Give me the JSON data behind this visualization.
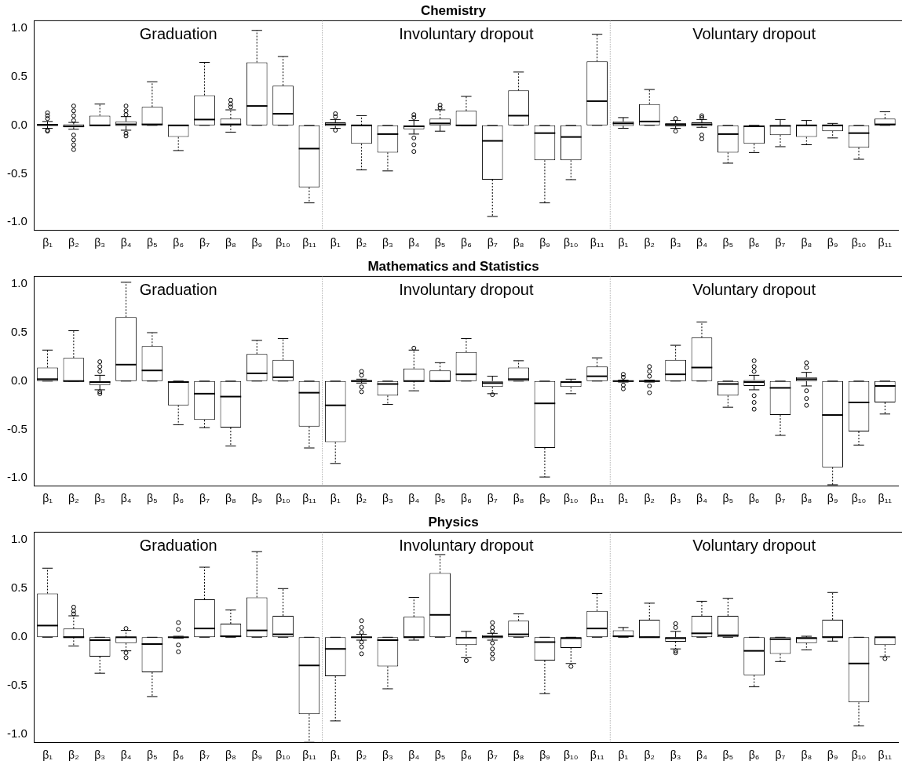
{
  "chart_data": [
    {
      "type": "box",
      "title": "Chemistry",
      "categories": [
        "β₁",
        "β₂",
        "β₃",
        "β₄",
        "β₅",
        "β₆",
        "β₇",
        "β₈",
        "β₉",
        "β₁₀",
        "β₁₁",
        "β₁",
        "β₂",
        "β₃",
        "β₄",
        "β₅",
        "β₆",
        "β₇",
        "β₈",
        "β₉",
        "β₁₀",
        "β₁₁",
        "β₁",
        "β₂",
        "β₃",
        "β₄",
        "β₅",
        "β₆",
        "β₇",
        "β₈",
        "β₉",
        "β₁₀",
        "β₁₁"
      ],
      "ylim": [
        -1.08,
        1.08
      ],
      "yticks": [
        {
          "value": -1,
          "label": "-1.0"
        },
        {
          "value": -0.5,
          "label": "-0.5"
        },
        {
          "value": 0,
          "label": "0.0"
        },
        {
          "value": 0.5,
          "label": "0.5"
        },
        {
          "value": 1,
          "label": "1.0"
        }
      ],
      "annotations": [
        "Graduation",
        "Involuntary dropout",
        "Voluntary dropout"
      ],
      "boxes": [
        {
          "low": -0.03,
          "q1": -0.005,
          "median": 0.005,
          "q3": 0.015,
          "high": 0.04,
          "outliers": [
            0.13,
            0.1,
            0.07,
            -0.05,
            -0.06
          ]
        },
        {
          "low": -0.04,
          "q1": -0.02,
          "median": -0.01,
          "q3": 0.01,
          "high": 0.03,
          "outliers": [
            0.2,
            0.15,
            0.1,
            0.05,
            -0.1,
            -0.15,
            -0.2,
            -0.25
          ]
        },
        {
          "low": 0,
          "q1": 0,
          "median": 0,
          "q3": 0.1,
          "high": 0.22
        },
        {
          "low": -0.05,
          "q1": -0.005,
          "median": 0.01,
          "q3": 0.04,
          "high": 0.09,
          "outliers": [
            0.2,
            0.15,
            0.11,
            -0.08,
            -0.11
          ]
        },
        {
          "low": 0,
          "q1": 0,
          "median": 0.01,
          "q3": 0.19,
          "high": 0.45
        },
        {
          "low": -0.26,
          "q1": -0.12,
          "median": 0,
          "q3": 0,
          "high": 0
        },
        {
          "low": 0,
          "q1": 0,
          "median": 0.06,
          "q3": 0.31,
          "high": 0.65
        },
        {
          "low": -0.07,
          "q1": 0,
          "median": 0.01,
          "q3": 0.07,
          "high": 0.16,
          "outliers": [
            0.26,
            0.22,
            0.19
          ]
        },
        {
          "low": 0,
          "q1": 0,
          "median": 0.2,
          "q3": 0.65,
          "high": 0.98
        },
        {
          "low": 0,
          "q1": 0,
          "median": 0.12,
          "q3": 0.41,
          "high": 0.71
        },
        {
          "low": -0.8,
          "q1": -0.64,
          "median": -0.24,
          "q3": 0,
          "high": 0
        },
        {
          "low": -0.03,
          "q1": -0.005,
          "median": 0.01,
          "q3": 0.03,
          "high": 0.06,
          "outliers": [
            0.12,
            0.09,
            -0.05
          ]
        },
        {
          "low": -0.46,
          "q1": -0.19,
          "median": 0,
          "q3": 0,
          "high": 0.1
        },
        {
          "low": -0.47,
          "q1": -0.28,
          "median": -0.09,
          "q3": 0,
          "high": 0
        },
        {
          "low": -0.09,
          "q1": -0.04,
          "median": -0.01,
          "q3": 0,
          "high": 0.05,
          "outliers": [
            0.11,
            0.08,
            -0.13,
            -0.2,
            -0.27
          ]
        },
        {
          "low": -0.06,
          "q1": 0,
          "median": 0.02,
          "q3": 0.07,
          "high": 0.16,
          "outliers": [
            0.21,
            0.18
          ]
        },
        {
          "low": -0.005,
          "q1": -0.005,
          "median": 0,
          "q3": 0.15,
          "high": 0.3
        },
        {
          "low": -0.94,
          "q1": -0.56,
          "median": -0.16,
          "q3": 0,
          "high": 0
        },
        {
          "low": 0,
          "q1": 0,
          "median": 0.1,
          "q3": 0.36,
          "high": 0.55
        },
        {
          "low": -0.8,
          "q1": -0.36,
          "median": -0.08,
          "q3": 0,
          "high": 0
        },
        {
          "low": -0.56,
          "q1": -0.36,
          "median": -0.12,
          "q3": 0,
          "high": 0
        },
        {
          "low": 0,
          "q1": 0,
          "median": 0.25,
          "q3": 0.66,
          "high": 0.94
        },
        {
          "low": -0.03,
          "q1": -0.005,
          "median": 0.02,
          "q3": 0.04,
          "high": 0.08
        },
        {
          "low": 0,
          "q1": 0,
          "median": 0.04,
          "q3": 0.22,
          "high": 0.37
        },
        {
          "low": -0.03,
          "q1": -0.01,
          "median": 0.01,
          "q3": 0.02,
          "high": 0.05,
          "outliers": [
            0.07,
            -0.06
          ]
        },
        {
          "low": -0.02,
          "q1": -0.005,
          "median": 0.01,
          "q3": 0.03,
          "high": 0.06,
          "outliers": [
            0.1,
            0.08,
            -0.1,
            -0.14
          ]
        },
        {
          "low": -0.39,
          "q1": -0.28,
          "median": -0.09,
          "q3": 0,
          "high": 0
        },
        {
          "low": -0.28,
          "q1": -0.19,
          "median": -0.01,
          "q3": 0,
          "high": 0
        },
        {
          "low": -0.22,
          "q1": -0.1,
          "median": -0.005,
          "q3": 0,
          "high": 0.06
        },
        {
          "low": -0.2,
          "q1": -0.12,
          "median": 0,
          "q3": 0,
          "high": 0.05
        },
        {
          "low": -0.13,
          "q1": -0.06,
          "median": 0,
          "q3": 0,
          "high": 0.02
        },
        {
          "low": -0.35,
          "q1": -0.23,
          "median": -0.08,
          "q3": 0,
          "high": 0
        },
        {
          "low": 0,
          "q1": 0,
          "median": 0.01,
          "q3": 0.07,
          "high": 0.14
        }
      ]
    },
    {
      "type": "box",
      "title": "Mathematics and Statistics",
      "categories": [
        "β₁",
        "β₂",
        "β₃",
        "β₄",
        "β₅",
        "β₆",
        "β₇",
        "β₈",
        "β₉",
        "β₁₀",
        "β₁₁",
        "β₁",
        "β₂",
        "β₃",
        "β₄",
        "β₅",
        "β₆",
        "β₇",
        "β₈",
        "β₉",
        "β₁₀",
        "β₁₁",
        "β₁",
        "β₂",
        "β₃",
        "β₄",
        "β₅",
        "β₆",
        "β₇",
        "β₈",
        "β₉",
        "β₁₀",
        "β₁₁"
      ],
      "ylim": [
        -1.08,
        1.08
      ],
      "yticks": [
        {
          "value": -1,
          "label": "-1.0"
        },
        {
          "value": -0.5,
          "label": "-0.5"
        },
        {
          "value": 0,
          "label": "0.0"
        },
        {
          "value": 0.5,
          "label": "0.5"
        },
        {
          "value": 1,
          "label": "1.0"
        }
      ],
      "annotations": [
        "Graduation",
        "Involuntary dropout",
        "Voluntary dropout"
      ],
      "boxes": [
        {
          "low": 0,
          "q1": 0,
          "median": 0.02,
          "q3": 0.14,
          "high": 0.32
        },
        {
          "low": 0,
          "q1": 0,
          "median": 0,
          "q3": 0.24,
          "high": 0.52
        },
        {
          "low": -0.09,
          "q1": -0.04,
          "median": -0.01,
          "q3": 0,
          "high": 0.06,
          "outliers": [
            0.2,
            0.15,
            0.1,
            -0.11,
            -0.13
          ]
        },
        {
          "low": 0,
          "q1": 0,
          "median": 0.17,
          "q3": 0.66,
          "high": 1.02
        },
        {
          "low": 0,
          "q1": 0,
          "median": 0.11,
          "q3": 0.36,
          "high": 0.5
        },
        {
          "low": -0.45,
          "q1": -0.25,
          "median": -0.01,
          "q3": 0,
          "high": 0
        },
        {
          "low": -0.48,
          "q1": -0.4,
          "median": -0.13,
          "q3": 0,
          "high": 0
        },
        {
          "low": -0.67,
          "q1": -0.48,
          "median": -0.16,
          "q3": 0,
          "high": 0
        },
        {
          "low": 0,
          "q1": 0,
          "median": 0.08,
          "q3": 0.28,
          "high": 0.42
        },
        {
          "low": 0,
          "q1": 0,
          "median": 0.04,
          "q3": 0.22,
          "high": 0.44
        },
        {
          "low": -0.69,
          "q1": -0.47,
          "median": -0.12,
          "q3": 0,
          "high": 0
        },
        {
          "low": -0.85,
          "q1": -0.63,
          "median": -0.25,
          "q3": 0,
          "high": 0
        },
        {
          "low": -0.02,
          "q1": -0.005,
          "median": 0,
          "q3": 0.01,
          "high": 0.02,
          "outliers": [
            0.1,
            0.06,
            -0.06,
            -0.11
          ]
        },
        {
          "low": -0.24,
          "q1": -0.15,
          "median": -0.03,
          "q3": 0,
          "high": 0
        },
        {
          "low": -0.1,
          "q1": 0,
          "median": 0,
          "q3": 0.13,
          "high": 0.32,
          "outliers": [
            0.34
          ]
        },
        {
          "low": 0,
          "q1": 0,
          "median": 0,
          "q3": 0.11,
          "high": 0.19
        },
        {
          "low": 0,
          "q1": 0,
          "median": 0.07,
          "q3": 0.3,
          "high": 0.44
        },
        {
          "low": -0.13,
          "q1": -0.06,
          "median": -0.02,
          "q3": 0,
          "high": 0.05,
          "outliers": [
            -0.14
          ]
        },
        {
          "low": 0,
          "q1": 0,
          "median": 0.02,
          "q3": 0.14,
          "high": 0.21
        },
        {
          "low": -0.99,
          "q1": -0.69,
          "median": -0.23,
          "q3": 0,
          "high": 0
        },
        {
          "low": -0.13,
          "q1": -0.06,
          "median": -0.01,
          "q3": 0,
          "high": 0.02
        },
        {
          "low": 0,
          "q1": 0,
          "median": 0.05,
          "q3": 0.15,
          "high": 0.24
        },
        {
          "low": -0.01,
          "q1": -0.005,
          "median": 0,
          "q3": 0.005,
          "high": 0.01,
          "outliers": [
            0.07,
            0.04,
            -0.04,
            -0.08
          ]
        },
        {
          "low": -0.01,
          "q1": -0.005,
          "median": 0,
          "q3": 0.005,
          "high": 0.01,
          "outliers": [
            0.15,
            0.1,
            0.05,
            -0.05,
            -0.12
          ]
        },
        {
          "low": 0,
          "q1": 0,
          "median": 0.07,
          "q3": 0.22,
          "high": 0.37
        },
        {
          "low": 0,
          "q1": 0,
          "median": 0.14,
          "q3": 0.45,
          "high": 0.61
        },
        {
          "low": -0.27,
          "q1": -0.15,
          "median": -0.03,
          "q3": 0,
          "high": 0
        },
        {
          "low": -0.09,
          "q1": -0.05,
          "median": -0.01,
          "q3": 0.01,
          "high": 0.06,
          "outliers": [
            0.21,
            0.15,
            0.1,
            -0.15,
            -0.22,
            -0.29
          ]
        },
        {
          "low": -0.56,
          "q1": -0.35,
          "median": -0.07,
          "q3": 0,
          "high": 0
        },
        {
          "low": -0.05,
          "q1": 0,
          "median": 0.02,
          "q3": 0.04,
          "high": 0.09,
          "outliers": [
            0.19,
            0.14,
            -0.1,
            -0.18,
            -0.25
          ]
        },
        {
          "low": -1.07,
          "q1": -0.89,
          "median": -0.35,
          "q3": 0,
          "high": 0
        },
        {
          "low": -0.66,
          "q1": -0.52,
          "median": -0.22,
          "q3": 0,
          "high": 0
        },
        {
          "low": -0.34,
          "q1": -0.22,
          "median": -0.05,
          "q3": 0,
          "high": 0
        }
      ]
    },
    {
      "type": "box",
      "title": "Physics",
      "categories": [
        "β₁",
        "β₂",
        "β₃",
        "β₄",
        "β₅",
        "β₆",
        "β₇",
        "β₈",
        "β₉",
        "β₁₀",
        "β₁₁",
        "β₁",
        "β₂",
        "β₃",
        "β₄",
        "β₅",
        "β₆",
        "β₇",
        "β₈",
        "β₉",
        "β₁₀",
        "β₁₁",
        "β₁",
        "β₂",
        "β₃",
        "β₄",
        "β₅",
        "β₆",
        "β₇",
        "β₈",
        "β₉",
        "β₁₀",
        "β₁₁"
      ],
      "ylim": [
        -1.08,
        1.08
      ],
      "yticks": [
        {
          "value": -1,
          "label": "-1.0"
        },
        {
          "value": -0.5,
          "label": "-0.5"
        },
        {
          "value": 0,
          "label": "0.0"
        },
        {
          "value": 0.5,
          "label": "0.5"
        },
        {
          "value": 1,
          "label": "1.0"
        }
      ],
      "annotations": [
        "Graduation",
        "Involuntary dropout",
        "Voluntary dropout"
      ],
      "boxes": [
        {
          "low": 0,
          "q1": 0,
          "median": 0.12,
          "q3": 0.45,
          "high": 0.71
        },
        {
          "low": -0.09,
          "q1": 0,
          "median": 0,
          "q3": 0.09,
          "high": 0.22,
          "outliers": [
            0.31,
            0.27,
            0.24
          ]
        },
        {
          "low": -0.37,
          "q1": -0.2,
          "median": -0.03,
          "q3": 0,
          "high": 0
        },
        {
          "low": -0.14,
          "q1": -0.06,
          "median": 0,
          "q3": 0,
          "high": 0.07,
          "outliers": [
            0.09,
            -0.16,
            -0.21
          ]
        },
        {
          "low": -0.61,
          "q1": -0.36,
          "median": -0.07,
          "q3": 0,
          "high": 0
        },
        {
          "low": -0.01,
          "q1": -0.005,
          "median": 0,
          "q3": 0.005,
          "high": 0.01,
          "outliers": [
            0.15,
            0.08,
            -0.08,
            -0.15
          ]
        },
        {
          "low": 0,
          "q1": 0,
          "median": 0.09,
          "q3": 0.39,
          "high": 0.72
        },
        {
          "low": 0,
          "q1": 0,
          "median": 0.01,
          "q3": 0.14,
          "high": 0.28
        },
        {
          "low": 0,
          "q1": 0,
          "median": 0.07,
          "q3": 0.41,
          "high": 0.88
        },
        {
          "low": 0,
          "q1": 0,
          "median": 0.03,
          "q3": 0.22,
          "high": 0.5
        },
        {
          "low": -1.08,
          "q1": -0.79,
          "median": -0.29,
          "q3": 0,
          "high": 0
        },
        {
          "low": -0.86,
          "q1": -0.4,
          "median": -0.12,
          "q3": 0,
          "high": 0
        },
        {
          "low": -0.03,
          "q1": -0.005,
          "median": 0,
          "q3": 0.005,
          "high": 0.03,
          "outliers": [
            0.17,
            0.1,
            0.05,
            -0.05,
            -0.1,
            -0.17
          ]
        },
        {
          "low": -0.53,
          "q1": -0.3,
          "median": -0.03,
          "q3": 0,
          "high": 0
        },
        {
          "low": -0.03,
          "q1": 0,
          "median": 0,
          "q3": 0.21,
          "high": 0.41
        },
        {
          "low": 0,
          "q1": 0,
          "median": 0.23,
          "q3": 0.66,
          "high": 0.85
        },
        {
          "low": -0.21,
          "q1": -0.08,
          "median": -0.005,
          "q3": 0,
          "high": 0.06,
          "outliers": [
            -0.24
          ]
        },
        {
          "low": -0.03,
          "q1": -0.01,
          "median": 0.005,
          "q3": 0.02,
          "high": 0.04,
          "outliers": [
            0.15,
            0.1,
            0.06,
            -0.06,
            -0.12,
            -0.17,
            -0.22
          ]
        },
        {
          "low": 0,
          "q1": 0,
          "median": 0.03,
          "q3": 0.17,
          "high": 0.24
        },
        {
          "low": -0.58,
          "q1": -0.24,
          "median": -0.05,
          "q3": 0,
          "high": 0
        },
        {
          "low": -0.27,
          "q1": -0.11,
          "median": -0.01,
          "q3": 0,
          "high": 0,
          "outliers": [
            -0.3
          ]
        },
        {
          "low": 0,
          "q1": 0,
          "median": 0.09,
          "q3": 0.27,
          "high": 0.45
        },
        {
          "low": 0,
          "q1": 0,
          "median": 0.01,
          "q3": 0.07,
          "high": 0.1
        },
        {
          "low": 0,
          "q1": 0,
          "median": 0,
          "q3": 0.18,
          "high": 0.35
        },
        {
          "low": -0.12,
          "q1": -0.045,
          "median": -0.01,
          "q3": 0,
          "high": 0.06,
          "outliers": [
            0.14,
            0.1,
            -0.14,
            -0.16
          ]
        },
        {
          "low": 0,
          "q1": 0,
          "median": 0.04,
          "q3": 0.22,
          "high": 0.37
        },
        {
          "low": 0,
          "q1": 0,
          "median": 0.02,
          "q3": 0.22,
          "high": 0.4
        },
        {
          "low": -0.51,
          "q1": -0.39,
          "median": -0.14,
          "q3": 0,
          "high": 0
        },
        {
          "low": -0.25,
          "q1": -0.17,
          "median": -0.02,
          "q3": 0,
          "high": 0
        },
        {
          "low": -0.13,
          "q1": -0.06,
          "median": -0.01,
          "q3": 0,
          "high": 0.01
        },
        {
          "low": -0.04,
          "q1": 0,
          "median": 0,
          "q3": 0.18,
          "high": 0.46
        },
        {
          "low": -0.91,
          "q1": -0.67,
          "median": -0.27,
          "q3": 0,
          "high": 0
        },
        {
          "low": -0.2,
          "q1": -0.08,
          "median": 0,
          "q3": 0,
          "high": 0,
          "outliers": [
            -0.22
          ]
        }
      ]
    }
  ]
}
